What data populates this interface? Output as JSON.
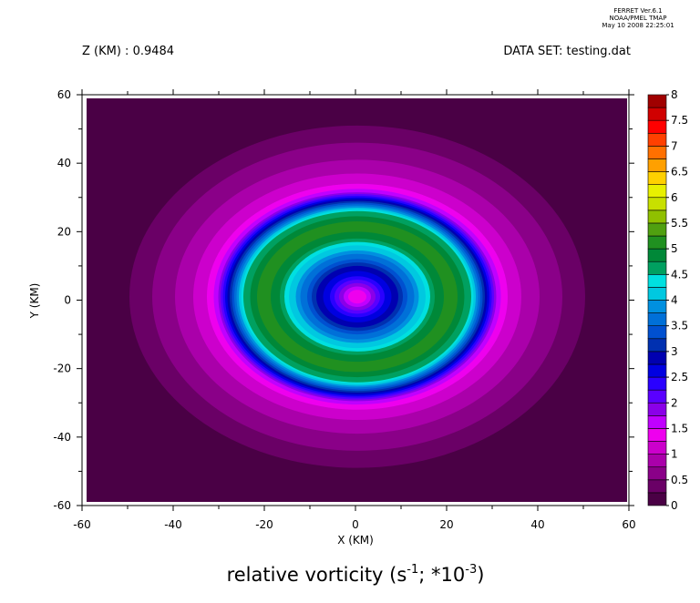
{
  "chart_data": {
    "type": "contour",
    "title": [
      "relative vorticity (s",
      "-1",
      "; *10",
      "-3",
      ")"
    ],
    "annotations": {
      "left": "Z (KM) : 0.9484",
      "right": "DATA SET: testing.dat",
      "stamp": [
        "FERRET Ver.6.1",
        "NOAA/PMEL TMAP",
        "May 10 2008 22:25:01"
      ]
    },
    "x_label": "X (KM)",
    "y_label": "Y (KM)",
    "xlim": [
      -60,
      60
    ],
    "ylim": [
      -60,
      60
    ],
    "xticks": [
      -60,
      -40,
      -20,
      0,
      20,
      40,
      60
    ],
    "yticks": [
      -60,
      -40,
      -20,
      0,
      20,
      40,
      60
    ],
    "center": [
      0.4,
      1
    ],
    "contours": [
      {
        "level": 0.25,
        "r": 50
      },
      {
        "level": 0.5,
        "r": 45
      },
      {
        "level": 0.75,
        "r": 40
      },
      {
        "level": 1,
        "r": 36
      },
      {
        "level": 1.25,
        "r": 33
      },
      {
        "level": 1.5,
        "r": 31.5
      },
      {
        "level": 1.75,
        "r": 30.5
      },
      {
        "level": 2,
        "r": 30
      },
      {
        "level": 2.25,
        "r": 29.5
      },
      {
        "level": 2.5,
        "r": 29
      },
      {
        "level": 2.75,
        "r": 28.5
      },
      {
        "level": 3,
        "r": 28
      },
      {
        "level": 3.25,
        "r": 27.5
      },
      {
        "level": 3.5,
        "r": 27
      },
      {
        "level": 3.75,
        "r": 26.5
      },
      {
        "level": 4,
        "r": 26
      },
      {
        "level": 4.25,
        "r": 25.5
      },
      {
        "level": 4.5,
        "r": 25
      },
      {
        "level": 4.75,
        "r": 23.5
      },
      {
        "level": 5,
        "r": 22
      },
      {
        "level": 4.75,
        "r": 19
      },
      {
        "level": 4.5,
        "r": 17
      },
      {
        "level": 4.25,
        "r": 16
      },
      {
        "level": 4,
        "r": 15
      },
      {
        "level": 3.75,
        "r": 13.5
      },
      {
        "level": 3.5,
        "r": 12.5
      },
      {
        "level": 3.25,
        "r": 11
      },
      {
        "level": 3,
        "r": 10
      },
      {
        "level": 2.75,
        "r": 9
      },
      {
        "level": 2.5,
        "r": 7.5
      },
      {
        "level": 2.25,
        "r": 6
      },
      {
        "level": 2,
        "r": 5
      },
      {
        "level": 1.75,
        "r": 4
      },
      {
        "level": 1.5,
        "r": 3
      },
      {
        "level": 1.25,
        "r": 2
      }
    ],
    "colorbar": {
      "levels": [
        0,
        0.25,
        0.5,
        0.75,
        1,
        1.25,
        1.5,
        1.75,
        2,
        2.25,
        2.5,
        2.75,
        3,
        3.25,
        3.5,
        3.75,
        4,
        4.25,
        4.5,
        4.75,
        5,
        5.25,
        5.5,
        5.75,
        6,
        6.25,
        6.5,
        6.75,
        7,
        7.25,
        7.5,
        7.75,
        8
      ],
      "colors": [
        "#4a0045",
        "#6a0066",
        "#8a0088",
        "#aa00aa",
        "#cc00cc",
        "#ee00ee",
        "#c000ff",
        "#8a00e8",
        "#5a00ff",
        "#2a00ff",
        "#0000e0",
        "#0000b0",
        "#0030b0",
        "#0050d0",
        "#0070d8",
        "#0090e0",
        "#00c8e0",
        "#00e0e0",
        "#00a060",
        "#008838",
        "#209020",
        "#50a010",
        "#90c000",
        "#c8e000",
        "#e8f000",
        "#ffd000",
        "#ffa000",
        "#ff7000",
        "#ff4000",
        "#ff0000",
        "#d00000",
        "#a00000"
      ],
      "ticks": [
        0,
        0.5,
        1,
        1.5,
        2,
        2.5,
        3,
        3.5,
        4,
        4.5,
        5,
        5.5,
        6,
        6.5,
        7,
        7.5,
        8
      ]
    }
  }
}
